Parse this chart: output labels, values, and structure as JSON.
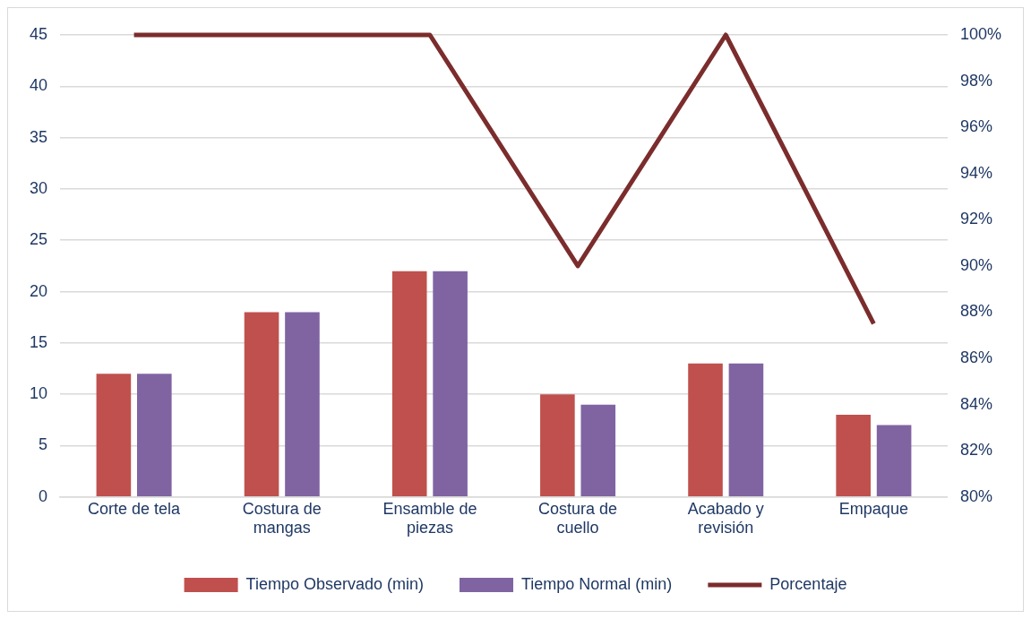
{
  "chart_data": {
    "type": "bar",
    "categories": [
      "Corte de tela",
      "Costura de mangas",
      "Ensamble de piezas",
      "Costura de cuello",
      "Acabado y revisión",
      "Empaque"
    ],
    "series": [
      {
        "name": "Tiempo Observado (min)",
        "color": "#c0504d",
        "values": [
          12,
          18,
          22,
          10,
          13,
          8
        ]
      },
      {
        "name": "Tiempo Normal (min)",
        "color": "#8064a2",
        "values": [
          12,
          18,
          22,
          9,
          13,
          7
        ]
      },
      {
        "name": "Porcentaje",
        "type": "line",
        "axis": "y2",
        "color": "#7b2c2c",
        "values": [
          100,
          100,
          100,
          90,
          100,
          87.5
        ]
      }
    ],
    "ylim": [
      0,
      45
    ],
    "yticks": [
      0,
      5,
      10,
      15,
      20,
      25,
      30,
      35,
      40,
      45
    ],
    "y2lim": [
      80,
      100
    ],
    "y2ticks": [
      {
        "value": 80,
        "label": "80%"
      },
      {
        "value": 82,
        "label": "82%"
      },
      {
        "value": 84,
        "label": "84%"
      },
      {
        "value": 86,
        "label": "86%"
      },
      {
        "value": 88,
        "label": "88%"
      },
      {
        "value": 90,
        "label": "90%"
      },
      {
        "value": 92,
        "label": "92%"
      },
      {
        "value": 94,
        "label": "94%"
      },
      {
        "value": 96,
        "label": "96%"
      },
      {
        "value": 98,
        "label": "98%"
      },
      {
        "value": 100,
        "label": "100%"
      }
    ],
    "grid": "y",
    "legend": "bottom",
    "marker": "none",
    "line_style": "solid"
  }
}
